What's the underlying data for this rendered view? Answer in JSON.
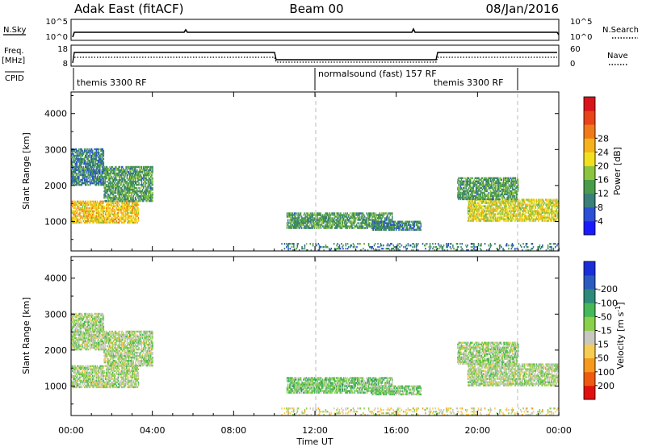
{
  "header": {
    "station": "Adak East (fitACF)",
    "beam": "Beam 00",
    "date": "08/Jan/2016"
  },
  "strips": {
    "nsky_label": "N.Sky",
    "nsearch_label": "N.Search",
    "nsky_ticks": [
      "10^5",
      "10^0"
    ],
    "nsearch_ticks": [
      "10^5",
      "10^0"
    ],
    "freq_label": "Freq.",
    "freq_unit": "[MHz]",
    "freq_ticks": [
      "18",
      "8"
    ],
    "nave_label": "Nave",
    "nave_ticks": [
      "60",
      "0"
    ],
    "cpid_label": "CPID",
    "cpid_segments": [
      {
        "start": 0,
        "end": 12,
        "label": "themis 3300 RF"
      },
      {
        "start": 12,
        "end": 22,
        "label": "normalsound (fast) 157 RF"
      },
      {
        "start": 18,
        "end": 22,
        "label": "themis 3300 RF"
      }
    ]
  },
  "chart_data": [
    {
      "type": "heatmap",
      "title": "",
      "xlabel": "Time UT",
      "ylabel": "Slant Range [km]",
      "xlim": [
        0,
        24
      ],
      "ylim": [
        180,
        4600
      ],
      "x_tick_labels": [
        "00:00",
        "04:00",
        "08:00",
        "12:00",
        "16:00",
        "20:00",
        "00:00"
      ],
      "y_ticks": [
        1000,
        2000,
        3000,
        4000
      ],
      "colorbar": {
        "label": "Power [dB]",
        "ticks": [
          4,
          8,
          12,
          16,
          20,
          24,
          28
        ],
        "range": [
          0,
          30
        ],
        "colors": [
          "#1a1aff",
          "#2b4fd6",
          "#3a7f7a",
          "#4a9c4a",
          "#8cc43f",
          "#f2e020",
          "#f5b21c",
          "#f07a1a",
          "#e8431a",
          "#d8141a"
        ]
      },
      "clusters": [
        {
          "t0": 0.0,
          "t1": 3.3,
          "r0": 950,
          "r1": 1550,
          "v": 18
        },
        {
          "t0": 0.0,
          "t1": 1.6,
          "r0": 2000,
          "r1": 3000,
          "v": 8
        },
        {
          "t0": 1.6,
          "t1": 4.0,
          "r0": 1550,
          "r1": 2500,
          "v": 10
        },
        {
          "t0": 10.6,
          "t1": 15.8,
          "r0": 800,
          "r1": 1250,
          "v": 10
        },
        {
          "t0": 14.8,
          "t1": 17.2,
          "r0": 750,
          "r1": 1000,
          "v": 8
        },
        {
          "t0": 19.5,
          "t1": 24.0,
          "r0": 1000,
          "r1": 1600,
          "v": 16
        },
        {
          "t0": 19.0,
          "t1": 22.0,
          "r0": 1600,
          "r1": 2200,
          "v": 10
        },
        {
          "t0": 10.3,
          "t1": 24.0,
          "r0": 180,
          "r1": 380,
          "v": 8
        }
      ]
    },
    {
      "type": "heatmap",
      "title": "",
      "xlabel": "Time UT",
      "ylabel": "Slant Range [km]",
      "xlim": [
        0,
        24
      ],
      "ylim": [
        180,
        4600
      ],
      "x_tick_labels": [
        "00:00",
        "04:00",
        "08:00",
        "12:00",
        "16:00",
        "20:00",
        "00:00"
      ],
      "y_ticks": [
        1000,
        2000,
        3000,
        4000
      ],
      "colorbar": {
        "label": "Velocity [m s^-1]",
        "ticks": [
          "200",
          "100",
          "50",
          "15",
          "-15",
          "-50",
          "-100",
          "-200"
        ],
        "range": [
          -250,
          250
        ],
        "colors": [
          "#e01010",
          "#ee5a10",
          "#f59a1c",
          "#f7cc55",
          "#c8c8c0",
          "#8ad04a",
          "#46b85a",
          "#2e8a7a",
          "#2b5bbf",
          "#1a2fd8"
        ]
      },
      "clusters": [
        {
          "t0": 0.0,
          "t1": 3.3,
          "r0": 950,
          "r1": 1550,
          "v": 0
        },
        {
          "t0": 0.0,
          "t1": 1.6,
          "r0": 2000,
          "r1": 3000,
          "v": 5
        },
        {
          "t0": 1.6,
          "t1": 4.0,
          "r0": 1550,
          "r1": 2500,
          "v": 0
        },
        {
          "t0": 10.6,
          "t1": 15.8,
          "r0": 800,
          "r1": 1250,
          "v": 45
        },
        {
          "t0": 14.8,
          "t1": 17.2,
          "r0": 750,
          "r1": 1000,
          "v": 30
        },
        {
          "t0": 19.5,
          "t1": 24.0,
          "r0": 1000,
          "r1": 1600,
          "v": 0
        },
        {
          "t0": 19.0,
          "t1": 22.0,
          "r0": 1600,
          "r1": 2200,
          "v": 10
        },
        {
          "t0": 10.3,
          "t1": 24.0,
          "r0": 180,
          "r1": 380,
          "v": -40
        }
      ]
    }
  ]
}
